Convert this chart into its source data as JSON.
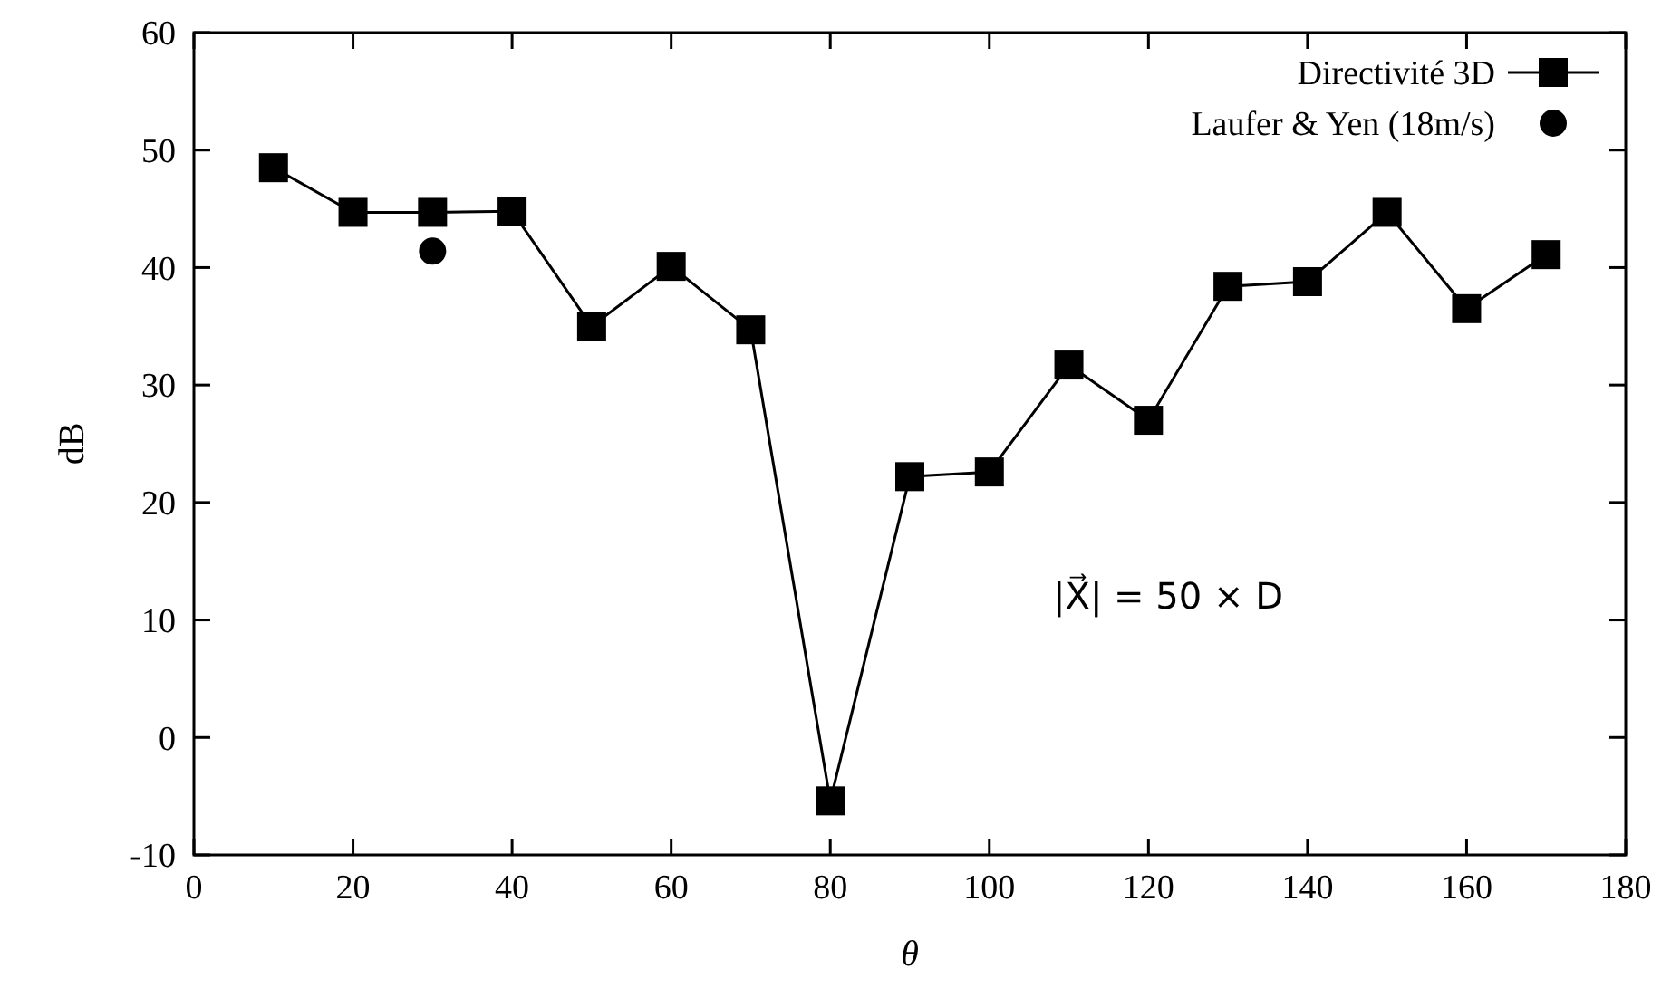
{
  "chart_data": {
    "type": "line",
    "xlabel": "θ",
    "ylabel": "dB",
    "x": [
      10,
      20,
      30,
      40,
      50,
      60,
      70,
      80,
      90,
      100,
      110,
      120,
      130,
      140,
      150,
      160,
      170
    ],
    "series": [
      {
        "name": "Directivité 3D",
        "marker": "square",
        "color": "#000000",
        "values": [
          48.5,
          44.7,
          44.7,
          44.8,
          35.0,
          40.1,
          34.7,
          -5.4,
          22.2,
          22.6,
          31.7,
          27.0,
          38.4,
          38.8,
          44.7,
          36.5,
          41.1
        ]
      },
      {
        "name": "Laufer & Yen (18m/s)",
        "type": "scatter",
        "marker": "circle",
        "color": "#000000",
        "x": [
          30
        ],
        "values": [
          41.4
        ]
      }
    ],
    "xlim": [
      0,
      180
    ],
    "xticks": [
      0,
      20,
      40,
      60,
      80,
      100,
      120,
      140,
      160,
      180
    ],
    "ylim": [
      -10,
      60
    ],
    "yticks": [
      -10,
      0,
      10,
      20,
      30,
      40,
      50,
      60
    ],
    "grid": false,
    "legend": "top right",
    "annotations": [
      "|X⃗| = 50 × D"
    ]
  }
}
